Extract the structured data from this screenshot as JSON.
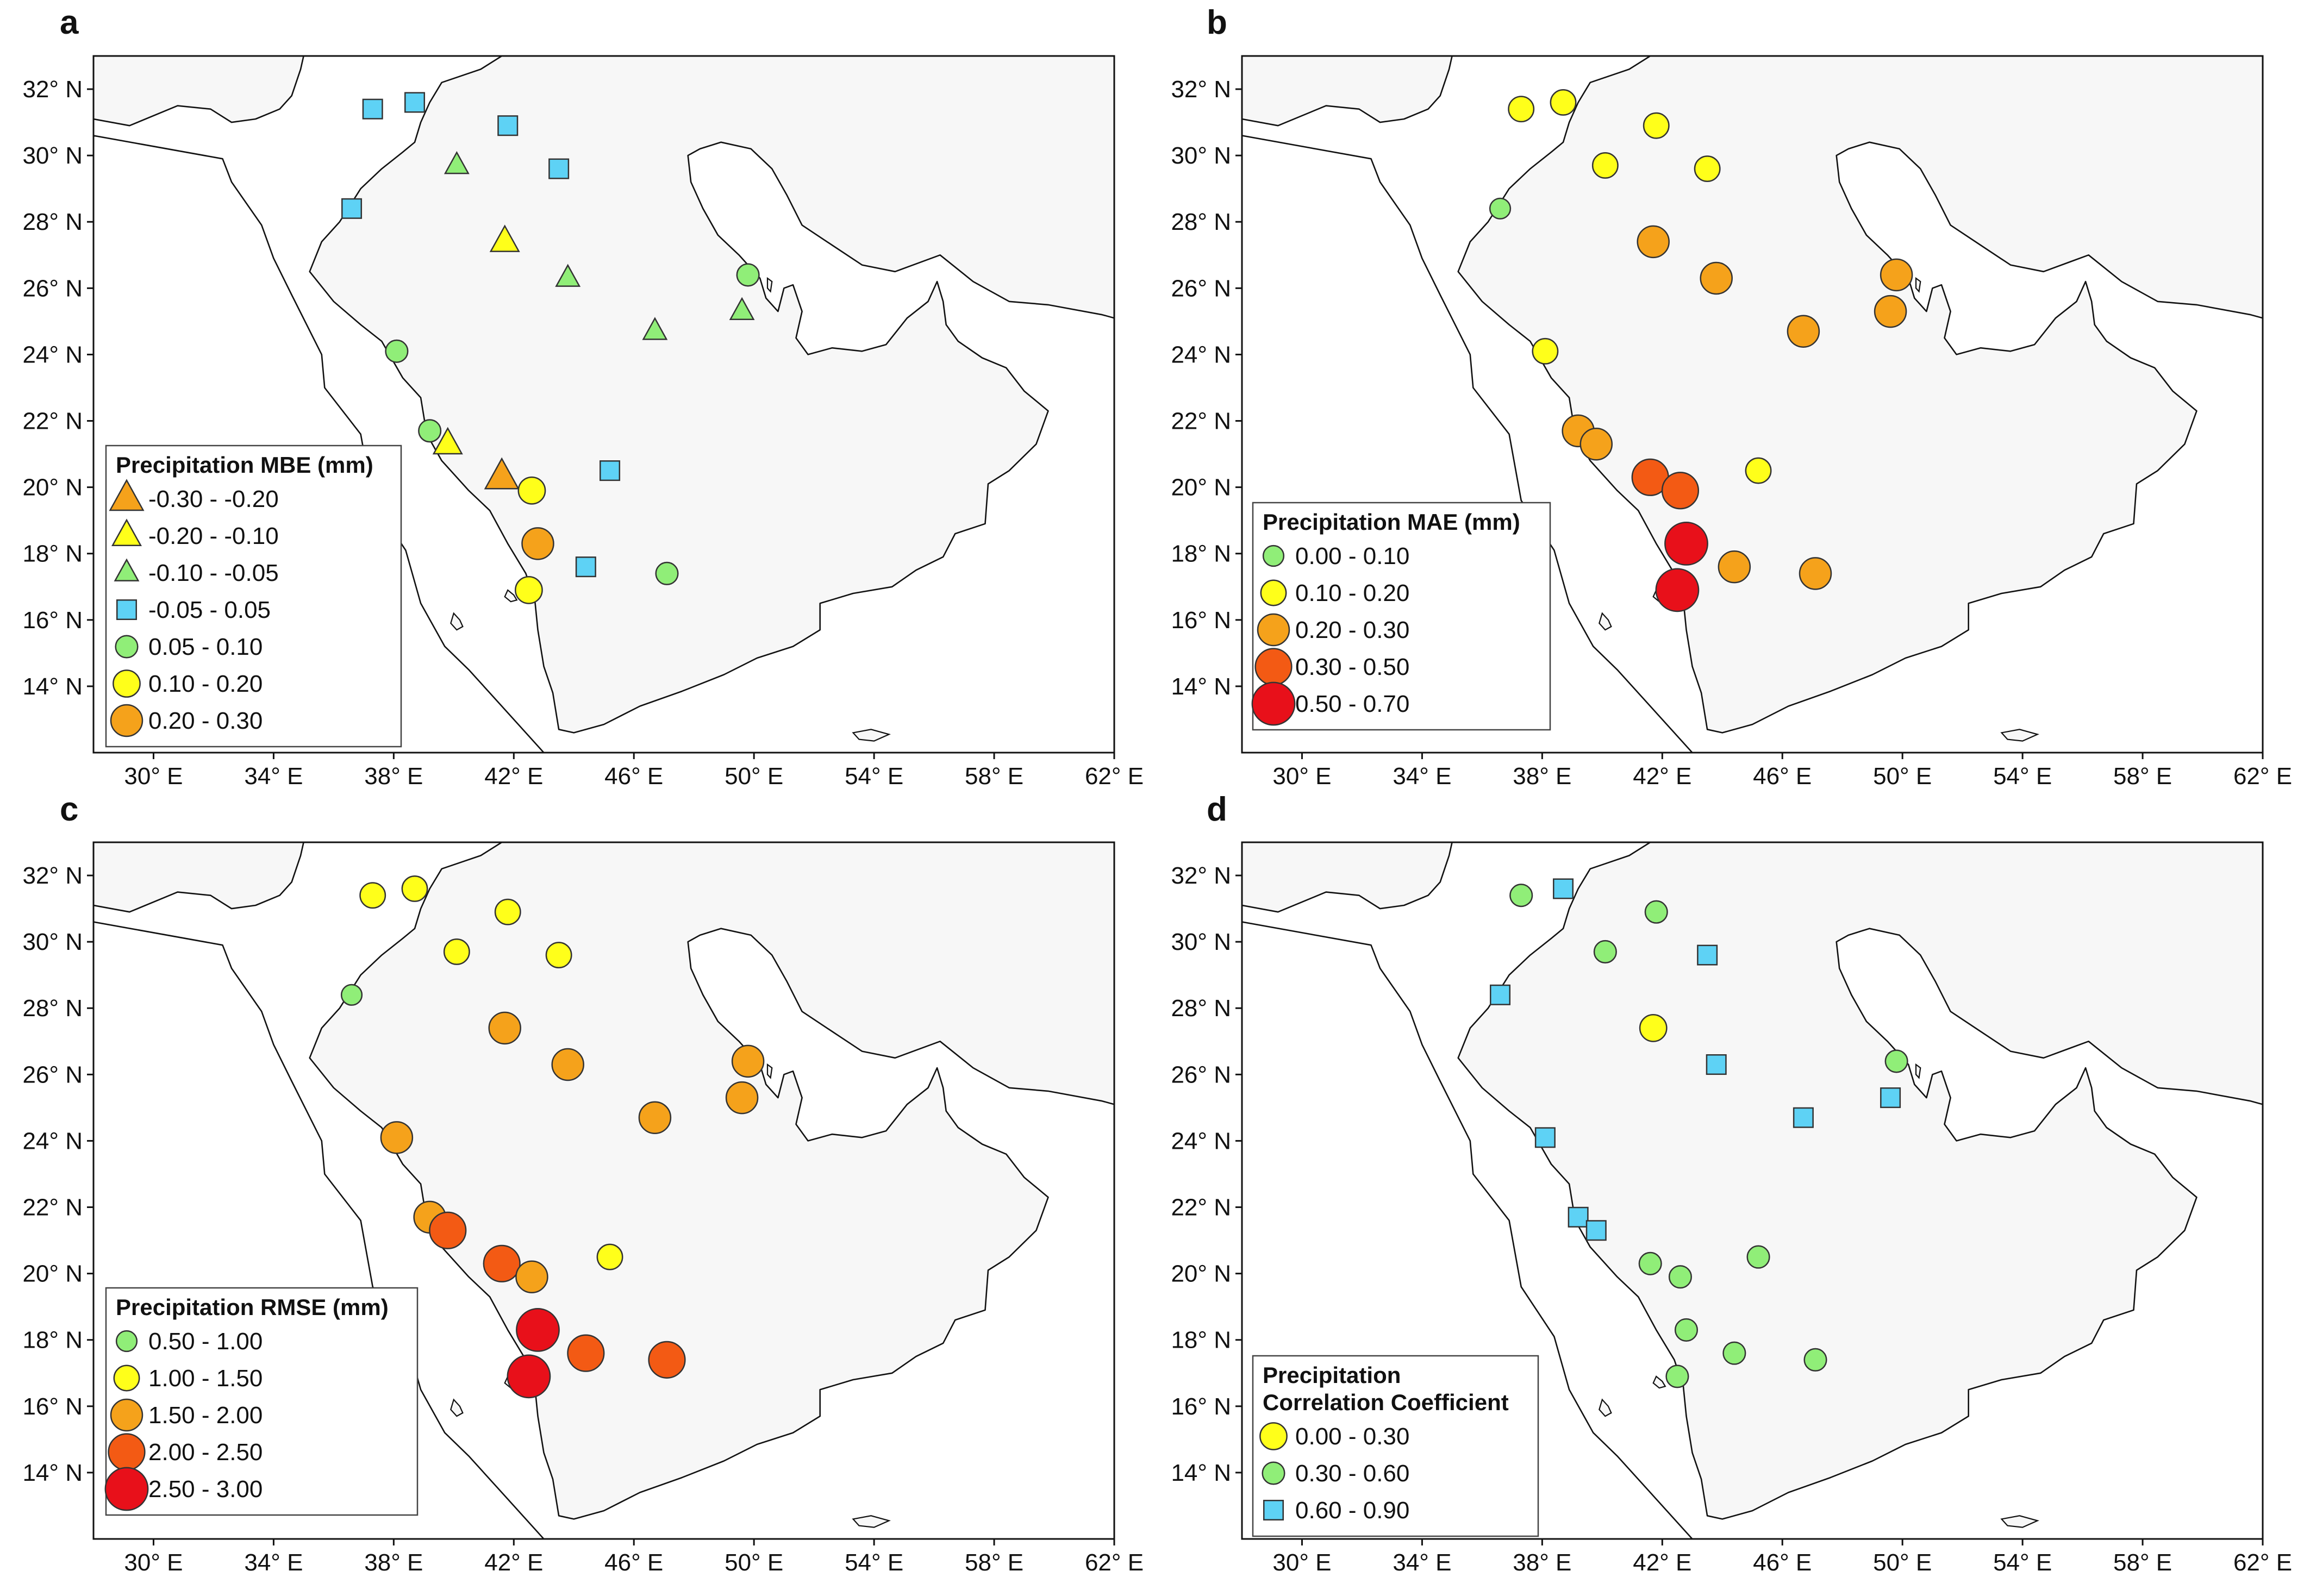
{
  "figure": {
    "axes": {
      "lon_range": [
        28,
        62
      ],
      "lat_range": [
        12,
        33
      ],
      "lon_ticks": [
        "30° E",
        "34° E",
        "38° E",
        "42° E",
        "46° E",
        "50° E",
        "54° E",
        "58° E",
        "62° E"
      ],
      "lat_ticks": [
        "14° N",
        "16° N",
        "18° N",
        "20° N",
        "22° N",
        "24° N",
        "26° N",
        "28° N",
        "30° N",
        "32° N"
      ]
    },
    "colors": {
      "ocean": "#ffffff",
      "land": "#f7f7f7",
      "coast": "#111111",
      "bin_orange": "#f5a21b",
      "bin_yellow": "#ffff1a",
      "bin_green": "#90ee78",
      "bin_cyan": "#5ed2f5",
      "bin_red_orange": "#f35a14",
      "bin_red": "#e8101a"
    }
  },
  "chart_data": [
    {
      "type": "map-scatter",
      "panel": "a",
      "legend_title": [
        "Precipitation MBE (mm)"
      ],
      "legend": [
        {
          "label": "-0.30 - -0.20",
          "shape": "triangle",
          "color": "#f5a21b",
          "scale": 1.0
        },
        {
          "label": "-0.20 - -0.10",
          "shape": "triangle",
          "color": "#ffff1a",
          "scale": 0.85
        },
        {
          "label": "-0.10 - -0.05",
          "shape": "triangle",
          "color": "#90ee78",
          "scale": 0.7
        },
        {
          "label": "-0.05 - 0.05",
          "shape": "square",
          "color": "#5ed2f5",
          "scale": 0.7
        },
        {
          "label": "0.05 - 0.10",
          "shape": "circle",
          "color": "#90ee78",
          "scale": 0.7
        },
        {
          "label": "0.10 - 0.20",
          "shape": "circle",
          "color": "#ffff1a",
          "scale": 0.85
        },
        {
          "label": "0.20 - 0.30",
          "shape": "circle",
          "color": "#f5a21b",
          "scale": 1.0
        }
      ],
      "stations": [
        {
          "lon": 37.3,
          "lat": 31.4,
          "bin": 3
        },
        {
          "lon": 38.7,
          "lat": 31.6,
          "bin": 3
        },
        {
          "lon": 41.8,
          "lat": 30.9,
          "bin": 3
        },
        {
          "lon": 43.5,
          "lat": 29.6,
          "bin": 3
        },
        {
          "lon": 36.6,
          "lat": 28.4,
          "bin": 3
        },
        {
          "lon": 40.1,
          "lat": 29.7,
          "bin": 2
        },
        {
          "lon": 41.7,
          "lat": 27.4,
          "bin": 1
        },
        {
          "lon": 43.8,
          "lat": 26.3,
          "bin": 2
        },
        {
          "lon": 46.7,
          "lat": 24.7,
          "bin": 2
        },
        {
          "lon": 49.6,
          "lat": 25.3,
          "bin": 2
        },
        {
          "lon": 49.8,
          "lat": 26.4,
          "bin": 4
        },
        {
          "lon": 38.1,
          "lat": 24.1,
          "bin": 4
        },
        {
          "lon": 39.2,
          "lat": 21.7,
          "bin": 4
        },
        {
          "lon": 39.8,
          "lat": 21.3,
          "bin": 1
        },
        {
          "lon": 41.6,
          "lat": 20.3,
          "bin": 0
        },
        {
          "lon": 42.6,
          "lat": 19.9,
          "bin": 5
        },
        {
          "lon": 42.8,
          "lat": 18.3,
          "bin": 6
        },
        {
          "lon": 42.5,
          "lat": 16.9,
          "bin": 5
        },
        {
          "lon": 45.2,
          "lat": 20.5,
          "bin": 3
        },
        {
          "lon": 44.4,
          "lat": 17.6,
          "bin": 3
        },
        {
          "lon": 47.1,
          "lat": 17.4,
          "bin": 4
        }
      ]
    },
    {
      "type": "map-scatter",
      "panel": "b",
      "legend_title": [
        "Precipitation MAE (mm)"
      ],
      "legend": [
        {
          "label": "0.00 - 0.10",
          "shape": "circle",
          "color": "#90ee78",
          "scale": 0.65
        },
        {
          "label": "0.10 - 0.20",
          "shape": "circle",
          "color": "#ffff1a",
          "scale": 0.8
        },
        {
          "label": "0.20 - 0.30",
          "shape": "circle",
          "color": "#f5a21b",
          "scale": 1.0
        },
        {
          "label": "0.30 - 0.50",
          "shape": "circle",
          "color": "#f35a14",
          "scale": 1.15
        },
        {
          "label": "0.50 - 0.70",
          "shape": "circle",
          "color": "#e8101a",
          "scale": 1.35
        }
      ],
      "stations": [
        {
          "lon": 37.3,
          "lat": 31.4,
          "bin": 1
        },
        {
          "lon": 38.7,
          "lat": 31.6,
          "bin": 1
        },
        {
          "lon": 41.8,
          "lat": 30.9,
          "bin": 1
        },
        {
          "lon": 43.5,
          "lat": 29.6,
          "bin": 1
        },
        {
          "lon": 36.6,
          "lat": 28.4,
          "bin": 0
        },
        {
          "lon": 40.1,
          "lat": 29.7,
          "bin": 1
        },
        {
          "lon": 41.7,
          "lat": 27.4,
          "bin": 2
        },
        {
          "lon": 43.8,
          "lat": 26.3,
          "bin": 2
        },
        {
          "lon": 46.7,
          "lat": 24.7,
          "bin": 2
        },
        {
          "lon": 49.6,
          "lat": 25.3,
          "bin": 2
        },
        {
          "lon": 49.8,
          "lat": 26.4,
          "bin": 2
        },
        {
          "lon": 38.1,
          "lat": 24.1,
          "bin": 1
        },
        {
          "lon": 39.2,
          "lat": 21.7,
          "bin": 2
        },
        {
          "lon": 39.8,
          "lat": 21.3,
          "bin": 2
        },
        {
          "lon": 41.6,
          "lat": 20.3,
          "bin": 3
        },
        {
          "lon": 42.6,
          "lat": 19.9,
          "bin": 3
        },
        {
          "lon": 42.8,
          "lat": 18.3,
          "bin": 4
        },
        {
          "lon": 42.5,
          "lat": 16.9,
          "bin": 4
        },
        {
          "lon": 45.2,
          "lat": 20.5,
          "bin": 1
        },
        {
          "lon": 44.4,
          "lat": 17.6,
          "bin": 2
        },
        {
          "lon": 47.1,
          "lat": 17.4,
          "bin": 2
        }
      ]
    },
    {
      "type": "map-scatter",
      "panel": "c",
      "legend_title": [
        "Precipitation RMSE (mm)"
      ],
      "legend": [
        {
          "label": "0.50 - 1.00",
          "shape": "circle",
          "color": "#90ee78",
          "scale": 0.65
        },
        {
          "label": "1.00 - 1.50",
          "shape": "circle",
          "color": "#ffff1a",
          "scale": 0.8
        },
        {
          "label": "1.50 - 2.00",
          "shape": "circle",
          "color": "#f5a21b",
          "scale": 1.0
        },
        {
          "label": "2.00 - 2.50",
          "shape": "circle",
          "color": "#f35a14",
          "scale": 1.15
        },
        {
          "label": "2.50 - 3.00",
          "shape": "circle",
          "color": "#e8101a",
          "scale": 1.35
        }
      ],
      "stations": [
        {
          "lon": 37.3,
          "lat": 31.4,
          "bin": 1
        },
        {
          "lon": 38.7,
          "lat": 31.6,
          "bin": 1
        },
        {
          "lon": 41.8,
          "lat": 30.9,
          "bin": 1
        },
        {
          "lon": 43.5,
          "lat": 29.6,
          "bin": 1
        },
        {
          "lon": 36.6,
          "lat": 28.4,
          "bin": 0
        },
        {
          "lon": 40.1,
          "lat": 29.7,
          "bin": 1
        },
        {
          "lon": 41.7,
          "lat": 27.4,
          "bin": 2
        },
        {
          "lon": 43.8,
          "lat": 26.3,
          "bin": 2
        },
        {
          "lon": 46.7,
          "lat": 24.7,
          "bin": 2
        },
        {
          "lon": 49.6,
          "lat": 25.3,
          "bin": 2
        },
        {
          "lon": 49.8,
          "lat": 26.4,
          "bin": 2
        },
        {
          "lon": 38.1,
          "lat": 24.1,
          "bin": 2
        },
        {
          "lon": 39.2,
          "lat": 21.7,
          "bin": 2
        },
        {
          "lon": 39.8,
          "lat": 21.3,
          "bin": 3
        },
        {
          "lon": 41.6,
          "lat": 20.3,
          "bin": 3
        },
        {
          "lon": 42.6,
          "lat": 19.9,
          "bin": 2
        },
        {
          "lon": 42.8,
          "lat": 18.3,
          "bin": 4
        },
        {
          "lon": 42.5,
          "lat": 16.9,
          "bin": 4
        },
        {
          "lon": 45.2,
          "lat": 20.5,
          "bin": 1
        },
        {
          "lon": 44.4,
          "lat": 17.6,
          "bin": 3
        },
        {
          "lon": 47.1,
          "lat": 17.4,
          "bin": 3
        }
      ]
    },
    {
      "type": "map-scatter",
      "panel": "d",
      "legend_title": [
        "Precipitation",
        "Correlation Coefficient"
      ],
      "legend": [
        {
          "label": "0.00 - 0.30",
          "shape": "circle",
          "color": "#ffff1a",
          "scale": 0.85
        },
        {
          "label": "0.30 - 0.60",
          "shape": "circle",
          "color": "#90ee78",
          "scale": 0.7
        },
        {
          "label": "0.60 - 0.90",
          "shape": "square",
          "color": "#5ed2f5",
          "scale": 0.7
        }
      ],
      "stations": [
        {
          "lon": 37.3,
          "lat": 31.4,
          "bin": 1
        },
        {
          "lon": 38.7,
          "lat": 31.6,
          "bin": 2
        },
        {
          "lon": 41.8,
          "lat": 30.9,
          "bin": 1
        },
        {
          "lon": 43.5,
          "lat": 29.6,
          "bin": 2
        },
        {
          "lon": 36.6,
          "lat": 28.4,
          "bin": 2
        },
        {
          "lon": 40.1,
          "lat": 29.7,
          "bin": 1
        },
        {
          "lon": 41.7,
          "lat": 27.4,
          "bin": 0
        },
        {
          "lon": 43.8,
          "lat": 26.3,
          "bin": 2
        },
        {
          "lon": 46.7,
          "lat": 24.7,
          "bin": 2
        },
        {
          "lon": 49.6,
          "lat": 25.3,
          "bin": 2
        },
        {
          "lon": 49.8,
          "lat": 26.4,
          "bin": 1
        },
        {
          "lon": 38.1,
          "lat": 24.1,
          "bin": 2
        },
        {
          "lon": 39.2,
          "lat": 21.7,
          "bin": 2
        },
        {
          "lon": 39.8,
          "lat": 21.3,
          "bin": 2
        },
        {
          "lon": 41.6,
          "lat": 20.3,
          "bin": 1
        },
        {
          "lon": 42.6,
          "lat": 19.9,
          "bin": 1
        },
        {
          "lon": 42.8,
          "lat": 18.3,
          "bin": 1
        },
        {
          "lon": 42.5,
          "lat": 16.9,
          "bin": 1
        },
        {
          "lon": 45.2,
          "lat": 20.5,
          "bin": 1
        },
        {
          "lon": 44.4,
          "lat": 17.6,
          "bin": 1
        },
        {
          "lon": 47.1,
          "lat": 17.4,
          "bin": 1
        }
      ]
    }
  ]
}
